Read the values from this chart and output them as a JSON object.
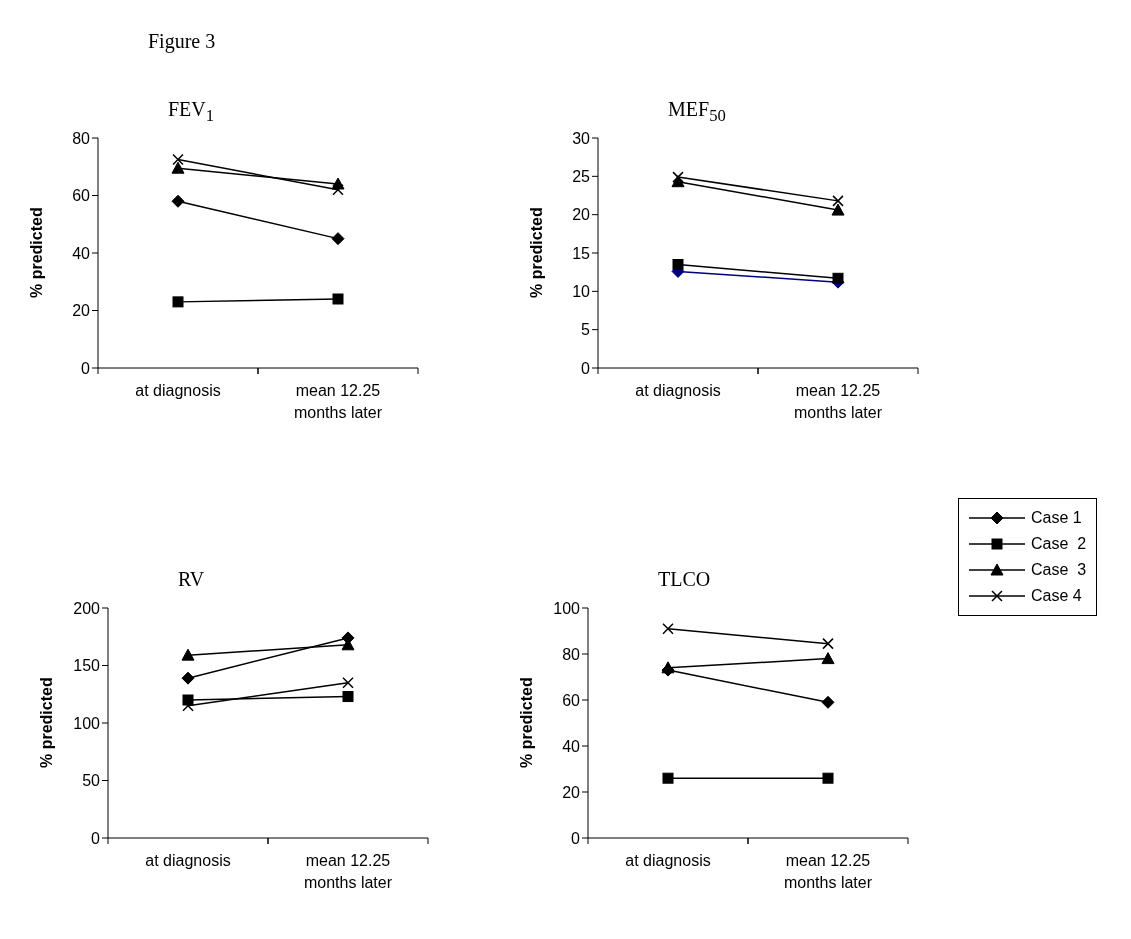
{
  "chart_data": [
    {
      "type": "line",
      "title": "FEV$_{1}$",
      "ylabel": "% predicted",
      "annotations": [
        "Figure 3"
      ],
      "categories": [
        "at diagnosis",
        "mean 12.25 months later"
      ],
      "ylim": [
        0,
        80
      ],
      "yticks": [
        0,
        20,
        40,
        60,
        80
      ],
      "grid": false,
      "legend": false,
      "series": [
        {
          "color": "#000000",
          "marker": "diamond",
          "values": [
            58,
            45
          ]
        },
        {
          "color": "#000000",
          "marker": "square",
          "values": [
            23,
            24
          ]
        },
        {
          "color": "#000000",
          "marker": "triangle",
          "values": [
            69.5,
            64
          ]
        },
        {
          "color": "#000000",
          "marker": "cross",
          "values": [
            72.5,
            62
          ]
        }
      ]
    },
    {
      "type": "line",
      "title": "MEF$_{50}$",
      "ylabel": "% predicted",
      "categories": [
        "at diagnosis",
        "mean 12.25 months later"
      ],
      "ylim": [
        0,
        30
      ],
      "yticks": [
        0,
        5,
        10,
        15,
        20,
        25,
        30
      ],
      "grid": false,
      "legend": false,
      "series": [
        {
          "color": "#000080",
          "marker": "diamond",
          "values": [
            12.6,
            11.2
          ]
        },
        {
          "color": "#000000",
          "marker": "square",
          "values": [
            13.5,
            11.7
          ]
        },
        {
          "color": "#000000",
          "marker": "triangle",
          "values": [
            24.3,
            20.6
          ]
        },
        {
          "color": "#000000",
          "marker": "cross",
          "values": [
            24.9,
            21.8
          ]
        }
      ]
    },
    {
      "type": "line",
      "title": "RV",
      "ylabel": "% predicted",
      "categories": [
        "at diagnosis",
        "mean 12.25 months later"
      ],
      "ylim": [
        0,
        200
      ],
      "yticks": [
        0,
        50,
        100,
        150,
        200
      ],
      "grid": false,
      "legend": false,
      "series": [
        {
          "color": "#000000",
          "marker": "diamond",
          "values": [
            139,
            174
          ]
        },
        {
          "color": "#000000",
          "marker": "square",
          "values": [
            120,
            123
          ]
        },
        {
          "color": "#000000",
          "marker": "triangle",
          "values": [
            159,
            168
          ]
        },
        {
          "color": "#000000",
          "marker": "cross",
          "values": [
            115,
            135
          ]
        }
      ]
    },
    {
      "type": "line",
      "title": "TLCO",
      "ylabel": "% predicted",
      "categories": [
        "at diagnosis",
        "mean 12.25 months later"
      ],
      "ylim": [
        0,
        100
      ],
      "yticks": [
        0,
        20,
        40,
        60,
        80,
        100
      ],
      "grid": false,
      "legend": "right",
      "series": [
        {
          "name": "Case 1",
          "color": "#000000",
          "marker": "diamond",
          "values": [
            73,
            59
          ]
        },
        {
          "name": "Case  2",
          "color": "#000000",
          "marker": "square",
          "values": [
            26,
            26
          ]
        },
        {
          "name": "Case  3",
          "color": "#000000",
          "marker": "triangle",
          "values": [
            74,
            78
          ]
        },
        {
          "name": "Case 4",
          "color": "#000000",
          "marker": "cross",
          "values": [
            91,
            84.5
          ]
        }
      ]
    }
  ]
}
